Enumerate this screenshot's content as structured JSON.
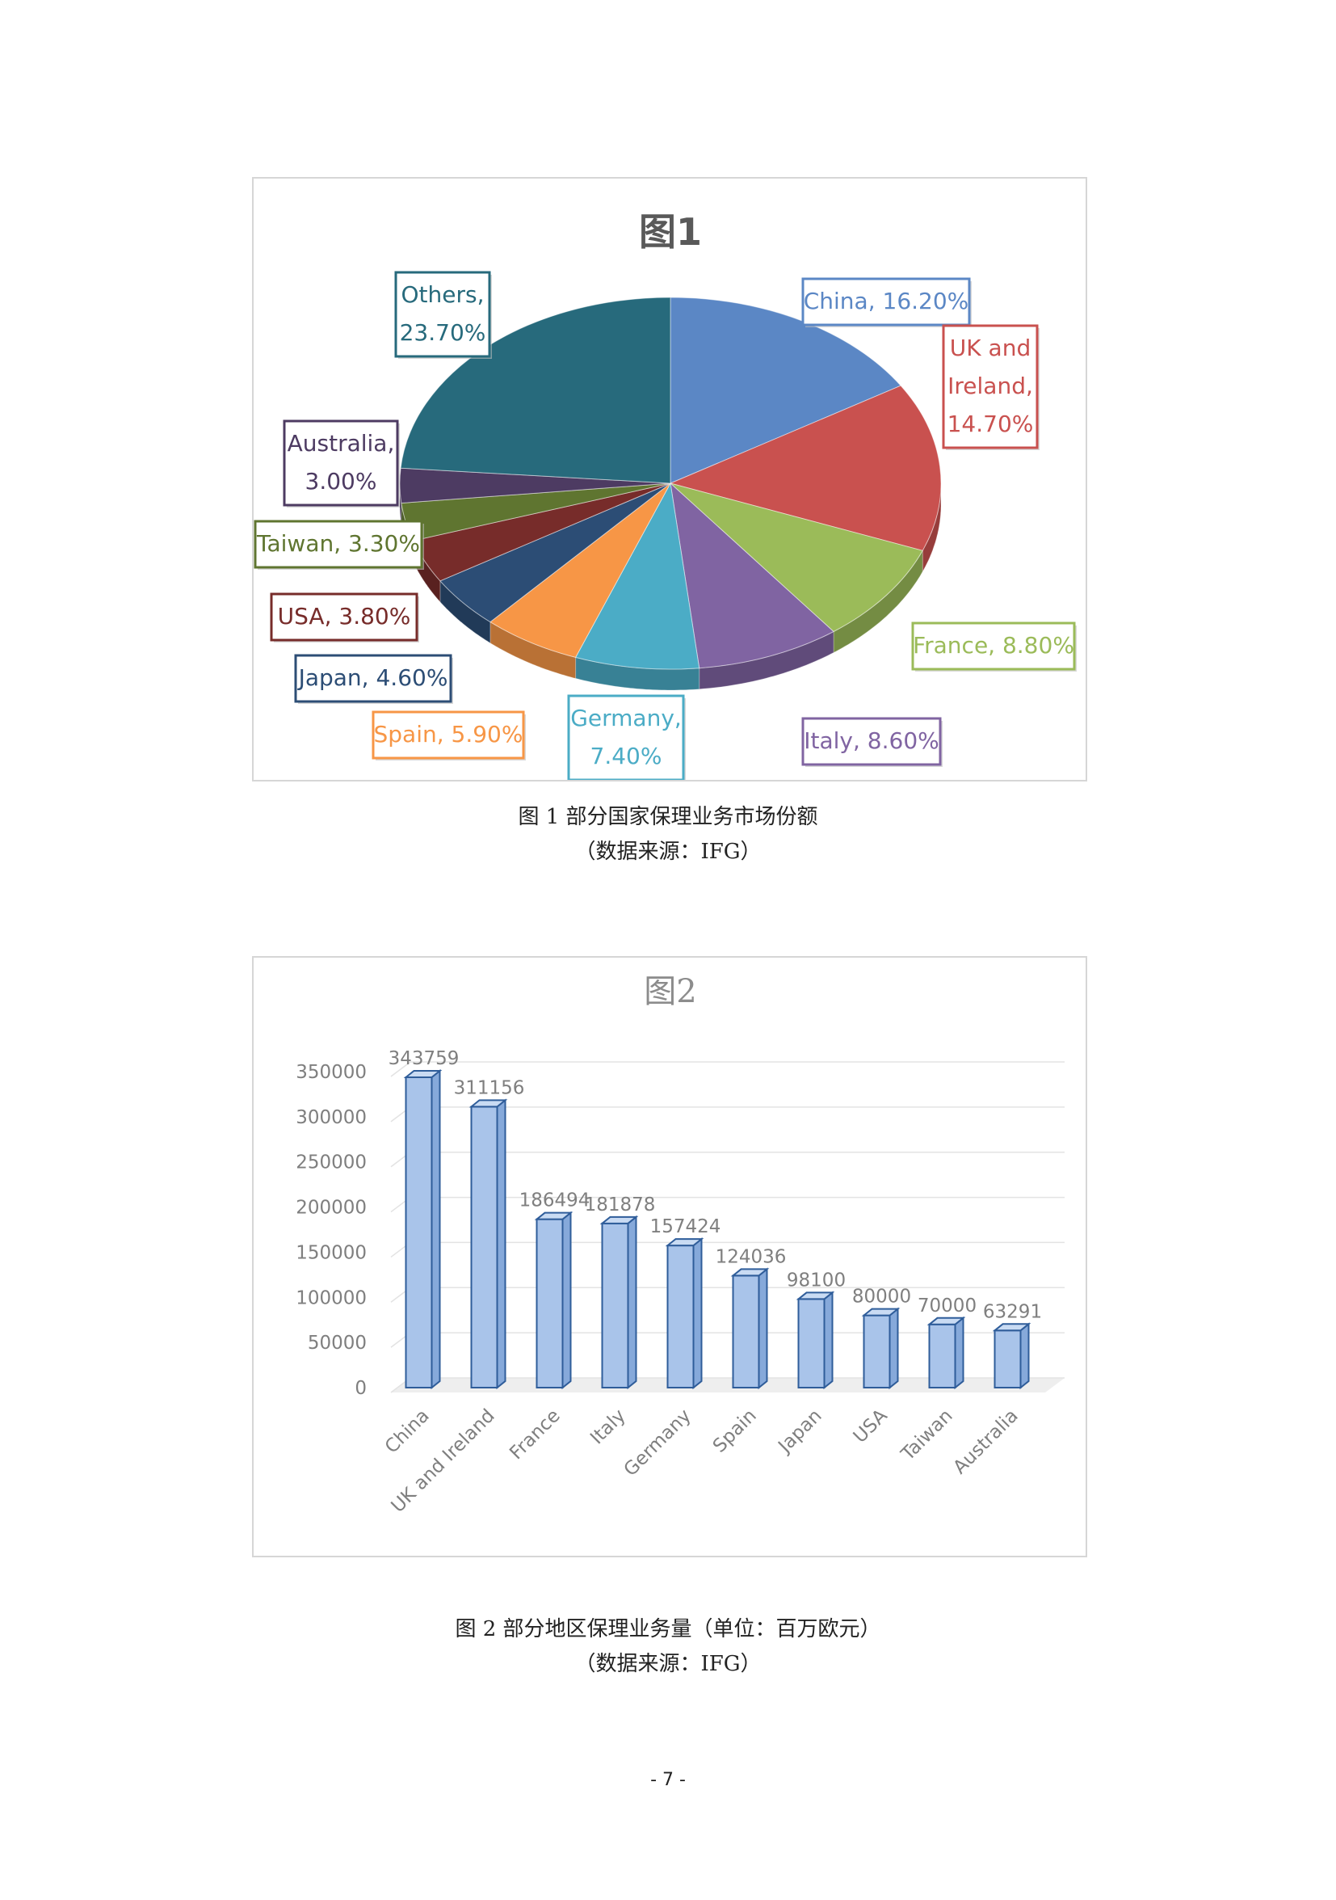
{
  "figure1": {
    "caption": "图 1  部分国家保理业务市场份额",
    "source": "（数据来源：IFG）"
  },
  "figure2": {
    "caption": "图 2 部分地区保理业务量（单位：百万欧元）",
    "source": "（数据来源：IFG）"
  },
  "page_number": "- 7 -",
  "chart_data": [
    {
      "type": "pie",
      "title": "图1",
      "slices": [
        {
          "label": "China",
          "value": 16.2,
          "display": "China, 16.20%",
          "color": "#5b87c5"
        },
        {
          "label": "UK and Ireland",
          "value": 14.7,
          "display": "UK and Ireland, 14.70%",
          "color": "#c9514f"
        },
        {
          "label": "France",
          "value": 8.8,
          "display": "France, 8.80%",
          "color": "#9bbb59"
        },
        {
          "label": "Italy",
          "value": 8.6,
          "display": "Italy, 8.60%",
          "color": "#8064a2"
        },
        {
          "label": "Germany",
          "value": 7.4,
          "display": "Germany, 7.40%",
          "color": "#4bacc6"
        },
        {
          "label": "Spain",
          "value": 5.9,
          "display": "Spain, 5.90%",
          "color": "#f79646"
        },
        {
          "label": "Japan",
          "value": 4.6,
          "display": "Japan, 4.60%",
          "color": "#2c4d75"
        },
        {
          "label": "USA",
          "value": 3.8,
          "display": "USA, 3.80%",
          "color": "#772c2a"
        },
        {
          "label": "Taiwan",
          "value": 3.3,
          "display": "Taiwan, 3.30%",
          "color": "#5f7530"
        },
        {
          "label": "Australia",
          "value": 3.0,
          "display": "Australia, 3.00%",
          "color": "#4d3b62"
        },
        {
          "label": "Others",
          "value": 23.7,
          "display": "Others, 23.70%",
          "color": "#276a7c"
        }
      ]
    },
    {
      "type": "bar",
      "title": "图2",
      "categories": [
        "China",
        "UK and Ireland",
        "France",
        "Italy",
        "Germany",
        "Spain",
        "Japan",
        "USA",
        "Taiwan",
        "Australia"
      ],
      "values": [
        343759,
        311156,
        186494,
        181878,
        157424,
        124036,
        98100,
        80000,
        70000,
        63291
      ],
      "ylim": [
        0,
        350000
      ],
      "yticks": [
        0,
        50000,
        100000,
        150000,
        200000,
        250000,
        300000,
        350000
      ],
      "bar_color": "#a9c4ea",
      "grid": true
    }
  ]
}
